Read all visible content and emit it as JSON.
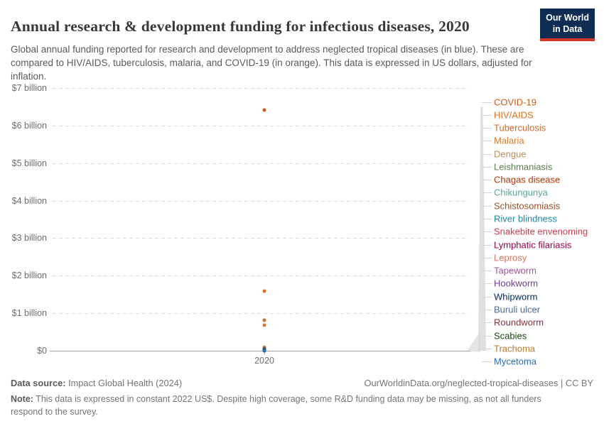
{
  "header": {
    "title": "Annual research & development funding for infectious diseases, 2020",
    "subtitle": "Global annual funding reported for research and development to address neglected tropical diseases (in blue). These are compared to HIV/AIDS, tuberculosis, malaria, and COVID-19 (in orange). This data is expressed in US dollars, adjusted for inflation.",
    "logo": {
      "line1": "Our World",
      "line2": "in Data",
      "bg_color": "#0d2e52",
      "stripe_color": "#d3392b"
    }
  },
  "chart_data": {
    "type": "scatter",
    "title": "Annual research & development funding for infectious diseases, 2020",
    "x": [
      2020
    ],
    "x_label": "2020",
    "xlabel": "",
    "ylabel": "",
    "ylim": [
      0,
      7
    ],
    "y_units": "billion US$ (constant 2022 US$)",
    "grid": "horizontal dashed",
    "legend_position": "right-edge entity labels with leader lines",
    "ytick_labels": [
      "$0",
      "$1 billion",
      "$2 billion",
      "$3 billion",
      "$4 billion",
      "$5 billion",
      "$6 billion",
      "$7 billion"
    ],
    "values_note": "values in $ billions, read from chart; small NTD values are approximate (cluster near $0)",
    "series": [
      {
        "name": "COVID-19",
        "value": 6.41,
        "color": "#d15a10"
      },
      {
        "name": "HIV/AIDS",
        "value": 1.59,
        "color": "#e2701b"
      },
      {
        "name": "Tuberculosis",
        "value": 0.81,
        "color": "#ce6a2c"
      },
      {
        "name": "Malaria",
        "value": 0.68,
        "color": "#df7b28"
      },
      {
        "name": "Dengue",
        "value": 0.1,
        "color": "#bc8e5a"
      },
      {
        "name": "Leishmaniasis",
        "value": 0.06,
        "color": "#578145"
      },
      {
        "name": "Chagas disease",
        "value": 0.05,
        "color": "#b13507"
      },
      {
        "name": "Chikungunya",
        "value": 0.04,
        "color": "#58ac8c"
      },
      {
        "name": "Schistosomiasis",
        "value": 0.035,
        "color": "#9a5129"
      },
      {
        "name": "River blindness",
        "value": 0.03,
        "color": "#2087a8"
      },
      {
        "name": "Snakebite envenoming",
        "value": 0.025,
        "color": "#d73c50"
      },
      {
        "name": "Lymphatic filariasis",
        "value": 0.02,
        "color": "#970046"
      },
      {
        "name": "Leprosy",
        "value": 0.018,
        "color": "#e56e5a"
      },
      {
        "name": "Tapeworm",
        "value": 0.015,
        "color": "#a2559c"
      },
      {
        "name": "Hookworm",
        "value": 0.012,
        "color": "#6d3e91"
      },
      {
        "name": "Whipworm",
        "value": 0.01,
        "color": "#00295b"
      },
      {
        "name": "Buruli ulcer",
        "value": 0.009,
        "color": "#4c6a9c"
      },
      {
        "name": "Roundworm",
        "value": 0.007,
        "color": "#883039"
      },
      {
        "name": "Scabies",
        "value": 0.005,
        "color": "#18470f"
      },
      {
        "name": "Trachoma",
        "value": 0.004,
        "color": "#be7a2e"
      },
      {
        "name": "Mycetoma",
        "value": 0.002,
        "color": "#286bbb"
      }
    ]
  },
  "footer": {
    "datasource_label": "Data source:",
    "datasource_value": " Impact Global Health (2024)",
    "citation": "OurWorldinData.org/neglected-tropical-diseases | CC BY",
    "note_label": "Note:",
    "note_value": " This data is expressed in constant 2022 US$. Despite high coverage, some R&D funding data may be missing, as not all funders respond to the survey."
  }
}
